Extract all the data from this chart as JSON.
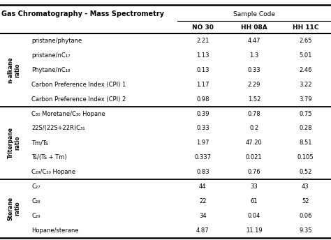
{
  "title": "Gas Chromatography - Mass Spectrometry",
  "sample_code_header": "Sample Code",
  "col_headers": [
    "NO 30",
    "HH 08A",
    "HH 11C"
  ],
  "row_groups": [
    {
      "group_label": "n-alkane\nratio",
      "rows": [
        {
          "label": "pristane/phytane",
          "values": [
            "2.21",
            "4.47",
            "2.65"
          ]
        },
        {
          "label": "pristane/nC₁₇",
          "values": [
            "1.13",
            "1.3",
            "5.01"
          ]
        },
        {
          "label": "Phytane/nC₁₈",
          "values": [
            "0.13",
            "0.33",
            "2.46"
          ]
        },
        {
          "label": "Carbon Preference Index (CPI) 1",
          "values": [
            "1.17",
            "2.29",
            "3.22"
          ]
        },
        {
          "label": "Carbon Preference Index (CPI) 2",
          "values": [
            "0.98",
            "1.52",
            "3.79"
          ]
        }
      ]
    },
    {
      "group_label": "Triterpane\nratio",
      "rows": [
        {
          "label": "C₃₀ Moretane/C₃₀ Hopane",
          "values": [
            "0.39",
            "0.78",
            "0.75"
          ]
        },
        {
          "label": "22S/(22S+22R)C₃₁",
          "values": [
            "0.33",
            "0.2",
            "0.28"
          ]
        },
        {
          "label": "Tm/Ts",
          "values": [
            "1.97",
            "47.20",
            "8.51"
          ]
        },
        {
          "label": "Ts/(Ts + Tm)",
          "values": [
            "0.337",
            "0.021",
            "0.105"
          ]
        },
        {
          "label": "C₂₉/C₃₀ Hopane",
          "values": [
            "0.83",
            "0.76",
            "0.52"
          ]
        }
      ]
    },
    {
      "group_label": "Sterane\nratio",
      "rows": [
        {
          "label": "C₂₇",
          "values": [
            "44",
            "33",
            "43"
          ]
        },
        {
          "label": "C₂₈",
          "values": [
            "22",
            "61",
            "52"
          ]
        },
        {
          "label": "C₂₉",
          "values": [
            "34",
            "0.04",
            "0.06"
          ]
        },
        {
          "label": "Hopane/sterane",
          "values": [
            "4.87",
            "11.19",
            "9.35"
          ]
        }
      ]
    }
  ],
  "bg_color": "#ffffff",
  "text_color": "#000000",
  "line_color": "#000000",
  "group_label_fontsize": 5.5,
  "title_fontsize": 7.0,
  "header_fontsize": 6.5,
  "cell_fontsize": 6.0,
  "fig_width": 4.74,
  "fig_height": 3.44,
  "dpi": 100
}
